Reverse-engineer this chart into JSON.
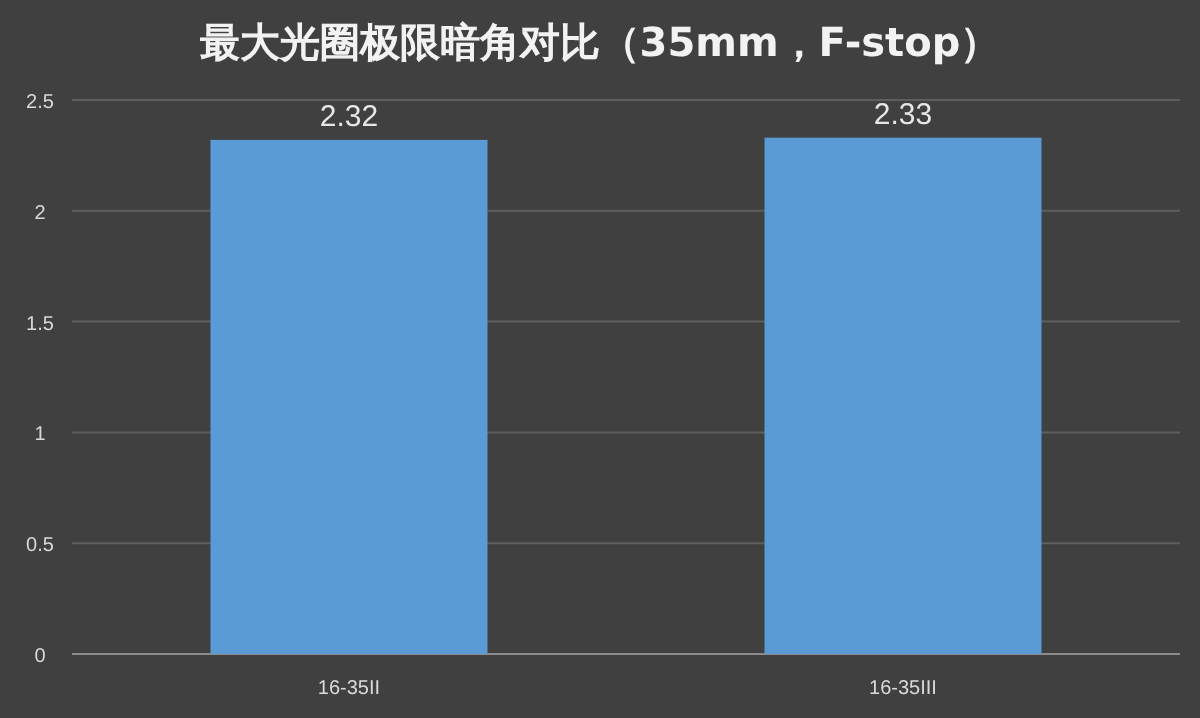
{
  "chart_data": {
    "type": "bar",
    "title": "最大光圈极限暗角对比（35mm，F-stop）",
    "categories": [
      "16-35II",
      "16-35III"
    ],
    "values": [
      2.32,
      2.33
    ],
    "color": "#5b9bd5",
    "ylim": [
      0,
      2.5
    ],
    "yticks": [
      0,
      0.5,
      1,
      1.5,
      2,
      2.5
    ],
    "grid": "y",
    "data_labels": true
  }
}
